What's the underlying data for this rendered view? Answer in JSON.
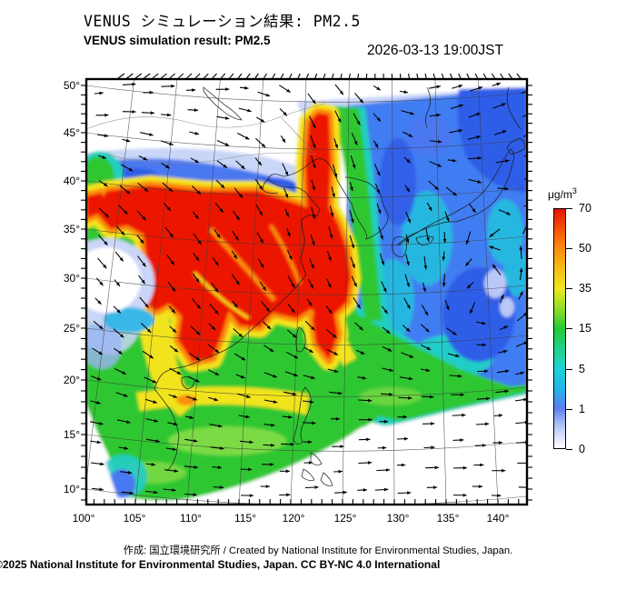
{
  "header": {
    "title_jp": "VENUS シミュレーション結果: PM2.5",
    "title_en": "VENUS simulation result: PM2.5",
    "timestamp": "2026-03-13 19:00JST"
  },
  "footer": {
    "credit": "作成: 国立環境研究所 / Created by National Institute for Environmental Studies, Japan.",
    "license": "©2025 National Institute for Environmental Studies, Japan. CC BY-NC 4.0 International"
  },
  "colorbar": {
    "unit_base": "μg/m",
    "unit_exponent": "3",
    "tick_labels": [
      "70",
      "50",
      "35",
      "15",
      "5",
      "1",
      "0"
    ],
    "stop_colors": [
      "#ffffff",
      "#5c7ef2",
      "#1fd2d8",
      "#22cc33",
      "#f0e81e",
      "#fb8f0e",
      "#e81102"
    ]
  },
  "axes": {
    "lat_labels": [
      "50°",
      "45°",
      "40°",
      "35°",
      "30°",
      "25°",
      "20°",
      "15°",
      "10°"
    ],
    "lon_labels": [
      "100°",
      "105°",
      "110°",
      "115°",
      "120°",
      "125°",
      "130°",
      "135°",
      "140°"
    ]
  },
  "chart_data": {
    "type": "heatmap",
    "title": "VENUS simulation result: PM2.5",
    "valid_time": "2026-03-13 19:00JST",
    "variable": "PM2.5 surface concentration",
    "unit": "μg/m³",
    "lon_range": [
      100,
      143
    ],
    "lat_range": [
      7,
      50
    ],
    "grid": "graticule every 5 degrees, tick marks every 1 degree",
    "legend_position": "right",
    "color_levels": [
      0,
      1,
      5,
      15,
      35,
      50,
      70
    ],
    "level_colors": [
      "#ffffff",
      "#5c7ef2",
      "#1fd2d8",
      "#22cc33",
      "#f0e81e",
      "#fb8f0e",
      "#e81102"
    ],
    "overlay": "wind vector arrows (black)",
    "features": [
      {
        "region": "eastern/central China ~25-40N, 104-123E",
        "value_ugm3": "70+ (red maximum)"
      },
      {
        "region": "narrow plume north along ~122E up to ~47N",
        "value_ugm3": "50-70 (red/orange)"
      },
      {
        "region": "Mongolia and far north of domain",
        "value_ugm3": "~0 (white)"
      },
      {
        "region": "small pocket near ~29N, 101E (Sichuan west rim)",
        "value_ugm3": "~0-1 (white/pale blue)"
      },
      {
        "region": "southern China, Indochina, Taiwan strait",
        "value_ugm3": "15-35 (green) with 35-50 yellow streaks"
      },
      {
        "region": "band sweeping SE over East China Sea toward 140E/25N",
        "value_ugm3": "15-35 (green) edged by cyan"
      },
      {
        "region": "Sea of Japan, Japan, NW Pacific",
        "value_ugm3": "1-5 (blue) with cyclonic swirl near 30N,133E"
      },
      {
        "region": "southeast ocean corner and below ~11N",
        "value_ugm3": "no data / ~0 (white)"
      }
    ]
  }
}
